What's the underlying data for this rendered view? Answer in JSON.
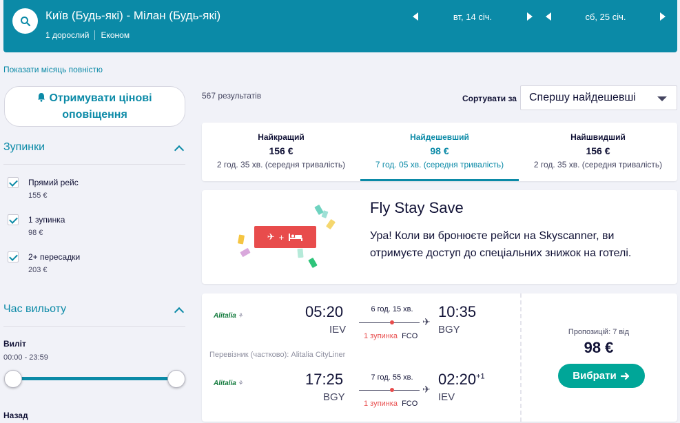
{
  "header": {
    "route": "Київ (Будь-які) - Мілан (Будь-які)",
    "passengers": "1 дорослий",
    "cabin": "Економ",
    "depart_date": "вт, 14 січ.",
    "return_date": "сб, 25 січ."
  },
  "month_link": "Показати місяць повністю",
  "sidebar": {
    "price_alert": "Отримувати цінові оповіщення",
    "stops_title": "Зупинки",
    "stops": [
      {
        "label": "Прямий рейс",
        "price": "155 €"
      },
      {
        "label": "1 зупинка",
        "price": "98 €"
      },
      {
        "label": "2+ пересадки",
        "price": "203 €"
      }
    ],
    "time_title": "Час вильоту",
    "outbound_label": "Виліт",
    "outbound_range": "00:00 - 23:59",
    "return_label": "Назад"
  },
  "results": {
    "count": "567 результатів",
    "sort_label": "Сортувати за",
    "sort_value": "Спершу найдешевші"
  },
  "tabs": [
    {
      "name": "Найкращий",
      "price": "156 €",
      "duration": "2 год. 35 хв. (середня тривалість)"
    },
    {
      "name": "Найдешевший",
      "price": "98 €",
      "duration": "7 год. 05 хв. (середня тривалість)"
    },
    {
      "name": "Найшвидший",
      "price": "156 €",
      "duration": "2 год. 35 хв. (середня тривалість)"
    }
  ],
  "promo": {
    "title": "Fly Stay Save",
    "text": "Ура! Коли ви бронюєте рейси на Skyscanner, ви отримуєте доступ до спеціальних знижок на готелі.",
    "plus": "+"
  },
  "flight": {
    "airline": "Alitalia",
    "carrier_note": "Перевізник (частково): Alitalia CityLiner",
    "outbound": {
      "dep_time": "05:20",
      "dep_code": "IEV",
      "arr_time": "10:35",
      "arr_code": "BGY",
      "duration": "6 год. 15 хв.",
      "stops": "1 зупинка",
      "via": "FCO"
    },
    "inbound": {
      "dep_time": "17:25",
      "dep_code": "BGY",
      "arr_time": "02:20",
      "arr_plus": "+1",
      "arr_code": "IEV",
      "duration": "7 год. 55 хв.",
      "stops": "1 зупинка",
      "via": "FCO"
    },
    "offers": "Пропозицій: 7 від",
    "price": "98 €",
    "select_label": "Вибрати"
  }
}
